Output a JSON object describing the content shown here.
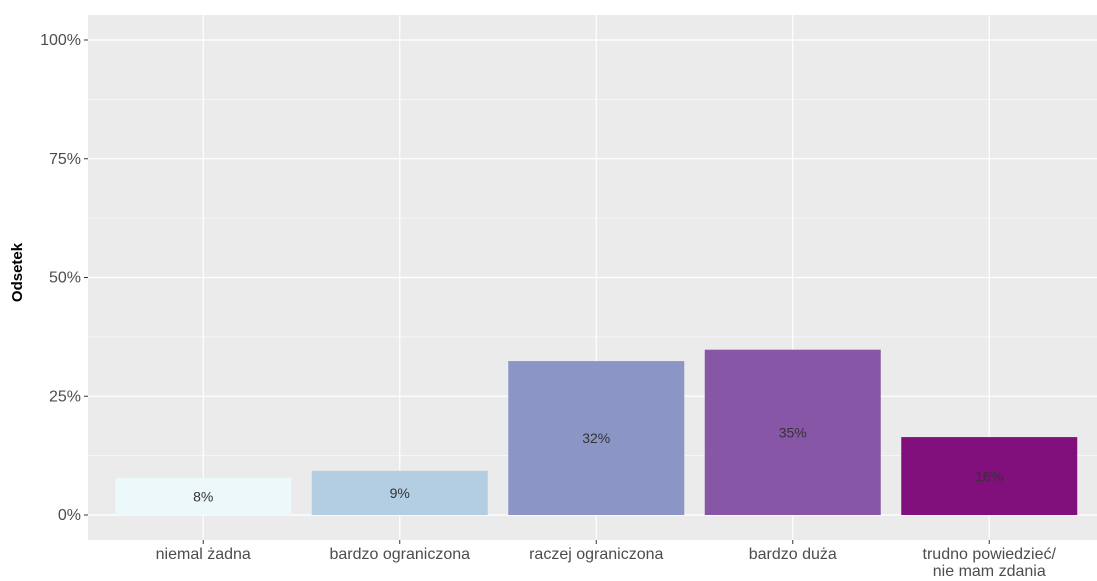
{
  "chart_data": {
    "type": "bar",
    "title": "",
    "xlabel": "",
    "ylabel": "Odsetek",
    "ylim": [
      0,
      100
    ],
    "y_ticks": [
      0,
      25,
      50,
      75,
      100
    ],
    "y_tick_labels": [
      "0%",
      "25%",
      "50%",
      "75%",
      "100%"
    ],
    "grid": true,
    "legend": "none",
    "categories": [
      "niemal żadna",
      "bardzo ograniczona",
      "raczej ograniczona",
      "bardzo duża",
      "trudno powiedzieć/ nie mam zdania"
    ],
    "category_lines": [
      [
        "niemal żadna"
      ],
      [
        "bardzo ograniczona"
      ],
      [
        "raczej ograniczona"
      ],
      [
        "bardzo duża"
      ],
      [
        "trudno powiedzieć/",
        "nie mam zdania"
      ]
    ],
    "values": [
      7.8,
      9.3,
      32.4,
      34.8,
      16.4
    ],
    "value_labels": [
      "8%",
      "9%",
      "32%",
      "35%",
      "16%"
    ],
    "colors": [
      "#edf8fb",
      "#b3cde3",
      "#8c96c6",
      "#8856a7",
      "#810f7c"
    ],
    "panel_background": "#ebebeb",
    "grid_color": "#ffffff"
  }
}
